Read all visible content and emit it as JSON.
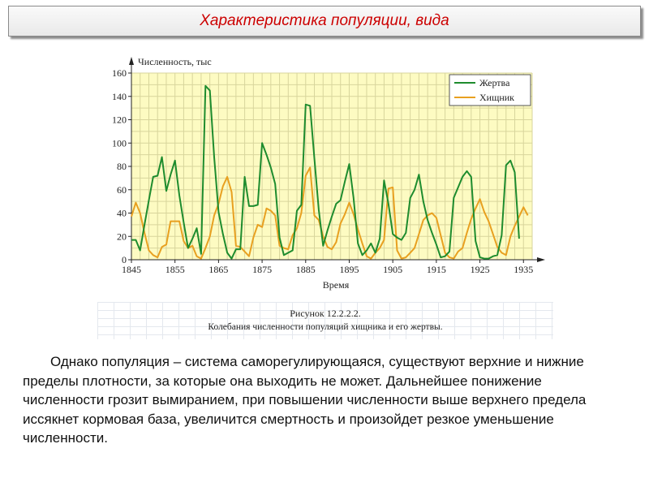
{
  "header": {
    "title": "Характеристика популяции, вида"
  },
  "figure": {
    "caption_number": "Рисунок 12.2.2.2.",
    "caption_text": "Колебания численности популяций хищника и его жертвы."
  },
  "paragraph": "Однако популяция – система саморегулирующаяся, существуют верхние и нижние пределы плотности, за которые она выходить не может. Дальнейшее понижение численности грозит вымиранием, при повышении численности выше верхнего предела иссякнет кормовая база, увеличится смертность и произойдет резкое уменьшение численности.",
  "colors": {
    "prey": "#1e8c2e",
    "predator": "#e8a020",
    "plot_bg": "#fdfbc2",
    "grid": "#d8d59c"
  },
  "chart_data": {
    "type": "line",
    "title": "",
    "xlabel": "Время",
    "ylabel": "Численность, тыс",
    "xlim": [
      1845,
      1937
    ],
    "ylim": [
      0,
      160
    ],
    "x_ticks": [
      "1845",
      "1855",
      "1865",
      "1875",
      "1885",
      "1895",
      "1905",
      "1915",
      "1925",
      "1935"
    ],
    "y_ticks": [
      "0",
      "20",
      "40",
      "60",
      "80",
      "100",
      "120",
      "140",
      "160"
    ],
    "grid": true,
    "legend_position": "top-right",
    "series": [
      {
        "name": "Жертва",
        "color": "#1e8c2e",
        "x": [
          1845,
          1846,
          1847,
          1848,
          1849,
          1850,
          1851,
          1852,
          1853,
          1854,
          1855,
          1856,
          1857,
          1858,
          1859,
          1860,
          1861,
          1862,
          1863,
          1864,
          1865,
          1866,
          1867,
          1868,
          1869,
          1870,
          1871,
          1872,
          1873,
          1874,
          1875,
          1876,
          1877,
          1878,
          1879,
          1880,
          1881,
          1882,
          1883,
          1884,
          1885,
          1886,
          1887,
          1888,
          1889,
          1890,
          1891,
          1892,
          1893,
          1894,
          1895,
          1896,
          1897,
          1898,
          1899,
          1900,
          1901,
          1902,
          1903,
          1904,
          1905,
          1906,
          1907,
          1908,
          1909,
          1910,
          1911,
          1912,
          1913,
          1914,
          1915,
          1916,
          1917,
          1918,
          1919,
          1920,
          1921,
          1922,
          1923,
          1924,
          1925,
          1926,
          1927,
          1928,
          1929,
          1930,
          1931,
          1932,
          1933,
          1934
        ],
        "values": [
          17,
          17,
          8,
          30,
          51,
          71,
          72,
          88,
          59,
          73,
          85,
          55,
          32,
          10,
          18,
          27,
          5,
          149,
          145,
          88,
          41,
          22,
          6,
          1,
          9,
          9,
          71,
          46,
          46,
          47,
          100,
          90,
          79,
          65,
          19,
          4,
          6,
          8,
          42,
          47,
          133,
          132,
          87,
          43,
          12,
          25,
          37,
          48,
          51,
          67,
          82,
          53,
          14,
          4,
          8,
          14,
          6,
          18,
          68,
          48,
          22,
          19,
          17,
          23,
          53,
          60,
          73,
          50,
          34,
          23,
          13,
          2,
          3,
          7,
          53,
          62,
          71,
          76,
          71,
          16,
          2,
          1,
          1,
          3,
          4,
          21,
          81,
          85,
          75,
          18
        ]
      },
      {
        "name": "Хищник",
        "color": "#e8a020",
        "x": [
          1845,
          1846,
          1847,
          1848,
          1849,
          1850,
          1851,
          1852,
          1853,
          1854,
          1855,
          1856,
          1857,
          1858,
          1859,
          1860,
          1861,
          1862,
          1863,
          1864,
          1865,
          1866,
          1867,
          1868,
          1869,
          1870,
          1871,
          1872,
          1873,
          1874,
          1875,
          1876,
          1877,
          1878,
          1879,
          1880,
          1881,
          1882,
          1883,
          1884,
          1885,
          1886,
          1887,
          1888,
          1889,
          1890,
          1891,
          1892,
          1893,
          1894,
          1895,
          1896,
          1897,
          1898,
          1899,
          1900,
          1901,
          1902,
          1903,
          1904,
          1905,
          1906,
          1907,
          1908,
          1909,
          1910,
          1911,
          1912,
          1913,
          1914,
          1915,
          1916,
          1917,
          1918,
          1919,
          1920,
          1921,
          1922,
          1923,
          1924,
          1925,
          1926,
          1927,
          1928,
          1929,
          1930,
          1931,
          1932,
          1933,
          1934,
          1935,
          1936
        ],
        "values": [
          37,
          49,
          40,
          23,
          8,
          4,
          2,
          11,
          13,
          33,
          33,
          33,
          16,
          10,
          12,
          3,
          1,
          10,
          20,
          38,
          48,
          63,
          71,
          58,
          12,
          11,
          7,
          3,
          19,
          30,
          28,
          44,
          42,
          38,
          12,
          10,
          9,
          21,
          27,
          40,
          72,
          79,
          38,
          34,
          20,
          11,
          9,
          15,
          31,
          39,
          49,
          39,
          26,
          14,
          3,
          1,
          6,
          10,
          17,
          61,
          62,
          8,
          1,
          2,
          6,
          10,
          22,
          34,
          38,
          40,
          36,
          21,
          6,
          2,
          1,
          7,
          10,
          23,
          35,
          44,
          52,
          41,
          33,
          22,
          11,
          6,
          4,
          20,
          29,
          37,
          45,
          38
        ]
      }
    ]
  }
}
